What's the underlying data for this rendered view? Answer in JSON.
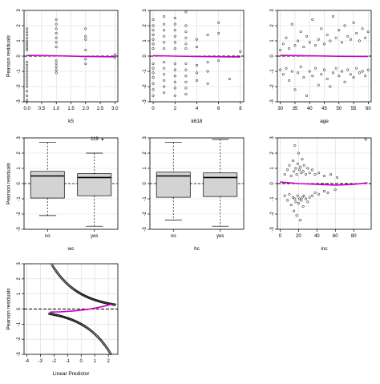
{
  "figure": {
    "ylabel_common": "Pearson residuals"
  },
  "colors": {
    "smooth": "#cc00cc",
    "box_fill": "#d3d3d3",
    "points": "#000000",
    "grid": "#d9d9d9",
    "refline": "#000000"
  },
  "chart_data": [
    {
      "id": "k5",
      "type": "scatter",
      "xlabel": "k5",
      "ylabel": "Pearson residuals",
      "xlim": [
        -0.1,
        3.1
      ],
      "ylim": [
        -3,
        3
      ],
      "xticks": [
        0.0,
        0.5,
        1.0,
        1.5,
        2.0,
        2.5,
        3.0
      ],
      "xticklabels": [
        "0.0",
        "0.5",
        "1.0",
        "1.5",
        "2.0",
        "2.5",
        "3.0"
      ],
      "yticks": [
        -3,
        -2,
        -1,
        0,
        1,
        2,
        3
      ],
      "grid": true,
      "refline_y": 0,
      "points": [
        [
          0,
          0.4
        ],
        [
          0,
          0.55
        ],
        [
          0,
          0.7
        ],
        [
          0,
          0.85
        ],
        [
          0,
          1.0
        ],
        [
          0,
          1.2
        ],
        [
          0,
          1.4
        ],
        [
          0,
          1.6
        ],
        [
          0,
          1.8
        ],
        [
          0,
          -0.4
        ],
        [
          0,
          -0.6
        ],
        [
          0,
          -0.8
        ],
        [
          0,
          -1.0
        ],
        [
          0,
          -1.2
        ],
        [
          0,
          -1.4
        ],
        [
          0,
          -1.6
        ],
        [
          0,
          -1.8
        ],
        [
          0,
          -2.0
        ],
        [
          0,
          -2.3
        ],
        [
          0,
          -2.6
        ],
        [
          0,
          -2.9
        ],
        [
          1,
          0.6
        ],
        [
          1,
          0.9
        ],
        [
          1,
          1.2
        ],
        [
          1,
          1.5
        ],
        [
          1,
          1.8
        ],
        [
          1,
          2.1
        ],
        [
          1,
          2.4
        ],
        [
          1,
          -0.3
        ],
        [
          1,
          -0.5
        ],
        [
          1,
          -0.7
        ],
        [
          1,
          -0.9
        ],
        [
          1,
          -1.1
        ],
        [
          2,
          0.4
        ],
        [
          2,
          1.1
        ],
        [
          2,
          1.3
        ],
        [
          2,
          1.8
        ],
        [
          2,
          -0.2
        ],
        [
          2,
          -0.5
        ],
        [
          3,
          0.1
        ],
        [
          3,
          -0.1
        ]
      ],
      "smooth": [
        [
          0,
          0.05
        ],
        [
          1,
          0.02
        ],
        [
          2,
          -0.02
        ],
        [
          3,
          -0.05
        ]
      ]
    },
    {
      "id": "k618",
      "type": "scatter",
      "xlabel": "k618",
      "ylabel": "",
      "xlim": [
        -0.3,
        8.3
      ],
      "ylim": [
        -3,
        3
      ],
      "xticks": [
        0,
        2,
        4,
        6,
        8
      ],
      "xticklabels": [
        "0",
        "2",
        "4",
        "6",
        "8"
      ],
      "yticks": [
        -3,
        -2,
        -1,
        0,
        1,
        2,
        3
      ],
      "grid": true,
      "refline_y": 0,
      "points": [
        [
          0,
          0.5
        ],
        [
          0,
          0.8
        ],
        [
          0,
          1.1
        ],
        [
          0,
          1.4
        ],
        [
          0,
          1.7
        ],
        [
          0,
          2.0
        ],
        [
          0,
          2.4
        ],
        [
          0,
          -0.5
        ],
        [
          0,
          -0.8
        ],
        [
          0,
          -1.1
        ],
        [
          0,
          -1.4
        ],
        [
          0,
          -1.8
        ],
        [
          0,
          -2.2
        ],
        [
          0,
          -2.6
        ],
        [
          1,
          0.5
        ],
        [
          1,
          0.9
        ],
        [
          1,
          1.3
        ],
        [
          1,
          1.7
        ],
        [
          1,
          2.1
        ],
        [
          1,
          2.6
        ],
        [
          1,
          -0.4
        ],
        [
          1,
          -0.8
        ],
        [
          1,
          -1.2
        ],
        [
          1,
          -1.6
        ],
        [
          1,
          -2.0
        ],
        [
          1,
          -2.4
        ],
        [
          2,
          0.5
        ],
        [
          2,
          0.9
        ],
        [
          2,
          1.3
        ],
        [
          2,
          1.7
        ],
        [
          2,
          2.1
        ],
        [
          2,
          2.5
        ],
        [
          2,
          -0.5
        ],
        [
          2,
          -0.9
        ],
        [
          2,
          -1.3
        ],
        [
          2,
          -1.7
        ],
        [
          2,
          -2.1
        ],
        [
          2,
          -2.6
        ],
        [
          3,
          0.5
        ],
        [
          3,
          0.8
        ],
        [
          3,
          1.2
        ],
        [
          3,
          1.6
        ],
        [
          3,
          2.0
        ],
        [
          3,
          2.9
        ],
        [
          3,
          -0.5
        ],
        [
          3,
          -0.9
        ],
        [
          3,
          -1.3
        ],
        [
          3,
          -1.7
        ],
        [
          3,
          -2.1
        ],
        [
          3,
          -2.5
        ],
        [
          4,
          0.6
        ],
        [
          4,
          1.1
        ],
        [
          4,
          -0.6
        ],
        [
          4,
          -1.1
        ],
        [
          4,
          -1.6
        ],
        [
          5,
          1.4
        ],
        [
          5,
          -0.4
        ],
        [
          5,
          -1.0
        ],
        [
          5,
          -1.8
        ],
        [
          6,
          2.2
        ],
        [
          6,
          1.5
        ],
        [
          6,
          -0.3
        ],
        [
          7,
          -1.5
        ],
        [
          8,
          0.3
        ]
      ],
      "smooth": [
        [
          0,
          0.03
        ],
        [
          2,
          0.0
        ],
        [
          4,
          -0.02
        ],
        [
          6,
          -0.04
        ],
        [
          8,
          -0.06
        ]
      ]
    },
    {
      "id": "age",
      "type": "scatter",
      "xlabel": "age",
      "ylabel": "",
      "xlim": [
        29,
        61
      ],
      "ylim": [
        -3,
        3
      ],
      "xticks": [
        30,
        35,
        40,
        45,
        50,
        55,
        60
      ],
      "xticklabels": [
        "30",
        "35",
        "40",
        "45",
        "50",
        "55",
        "60"
      ],
      "yticks": [
        -3,
        -2,
        -1,
        0,
        1,
        2,
        3
      ],
      "grid": true,
      "refline_y": 0,
      "points": [
        [
          30,
          0.4
        ],
        [
          31,
          0.8
        ],
        [
          32,
          1.2
        ],
        [
          33,
          0.5
        ],
        [
          34,
          2.1
        ],
        [
          35,
          0.7
        ],
        [
          36,
          1.0
        ],
        [
          37,
          1.6
        ],
        [
          38,
          0.6
        ],
        [
          39,
          1.3
        ],
        [
          40,
          0.9
        ],
        [
          41,
          2.4
        ],
        [
          42,
          0.7
        ],
        [
          43,
          1.1
        ],
        [
          44,
          1.8
        ],
        [
          45,
          0.8
        ],
        [
          46,
          1.4
        ],
        [
          47,
          1.0
        ],
        [
          48,
          2.6
        ],
        [
          49,
          1.2
        ],
        [
          50,
          1.7
        ],
        [
          51,
          0.9
        ],
        [
          52,
          2.0
        ],
        [
          53,
          1.3
        ],
        [
          54,
          1.1
        ],
        [
          55,
          2.2
        ],
        [
          56,
          1.5
        ],
        [
          57,
          1.0
        ],
        [
          58,
          1.8
        ],
        [
          59,
          1.2
        ],
        [
          60,
          1.6
        ],
        [
          30,
          -0.9
        ],
        [
          31,
          -1.2
        ],
        [
          32,
          -0.8
        ],
        [
          33,
          -1.6
        ],
        [
          34,
          -1.0
        ],
        [
          35,
          -2.2
        ],
        [
          36,
          -1.1
        ],
        [
          37,
          -0.7
        ],
        [
          38,
          -1.4
        ],
        [
          39,
          -2.6
        ],
        [
          40,
          -1.0
        ],
        [
          41,
          -1.3
        ],
        [
          42,
          -0.8
        ],
        [
          43,
          -1.9
        ],
        [
          44,
          -1.2
        ],
        [
          45,
          -0.9
        ],
        [
          46,
          -1.5
        ],
        [
          47,
          -2.0
        ],
        [
          48,
          -1.1
        ],
        [
          49,
          -0.8
        ],
        [
          50,
          -1.3
        ],
        [
          51,
          -1.0
        ],
        [
          52,
          -1.7
        ],
        [
          53,
          -0.9
        ],
        [
          54,
          -1.2
        ],
        [
          55,
          -1.4
        ],
        [
          56,
          -0.8
        ],
        [
          57,
          -1.1
        ],
        [
          58,
          -1.0
        ],
        [
          59,
          -1.3
        ],
        [
          60,
          -0.9
        ]
      ],
      "smooth": [
        [
          30,
          0.05
        ],
        [
          40,
          0.02
        ],
        [
          50,
          -0.01
        ],
        [
          60,
          -0.02
        ]
      ]
    },
    {
      "id": "wc",
      "type": "box",
      "xlabel": "wc",
      "ylabel": "Pearson residuals",
      "categories": [
        "no",
        "yes"
      ],
      "ylim": [
        -3,
        3
      ],
      "yticks": [
        -3,
        -2,
        -1,
        0,
        1,
        2,
        3
      ],
      "grid": true,
      "refline_y": 0,
      "boxes": [
        {
          "category": "no",
          "whisker_low": -2.1,
          "q1": -0.95,
          "median": 0.5,
          "q3": 0.8,
          "whisker_high": 2.7,
          "outliers": []
        },
        {
          "category": "yes",
          "whisker_low": -2.8,
          "q1": -0.8,
          "median": 0.4,
          "q3": 0.65,
          "whisker_high": 2.0,
          "outliers": [
            2.9
          ]
        }
      ],
      "annotations": [
        {
          "text": "119",
          "category": "yes",
          "y": 2.9
        }
      ]
    },
    {
      "id": "hc",
      "type": "box",
      "xlabel": "hc",
      "ylabel": "",
      "categories": [
        "no",
        "yes"
      ],
      "ylim": [
        -3,
        3
      ],
      "yticks": [
        -3,
        -2,
        -1,
        0,
        1,
        2,
        3
      ],
      "grid": true,
      "refline_y": 0,
      "boxes": [
        {
          "category": "no",
          "whisker_low": -2.4,
          "q1": -0.9,
          "median": 0.5,
          "q3": 0.75,
          "whisker_high": 2.7,
          "outliers": []
        },
        {
          "category": "yes",
          "whisker_low": -2.8,
          "q1": -0.85,
          "median": 0.4,
          "q3": 0.7,
          "whisker_high": 2.9,
          "outliers": []
        }
      ],
      "annotations": []
    },
    {
      "id": "inc",
      "type": "scatter",
      "xlabel": "inc",
      "ylabel": "",
      "xlim": [
        -3,
        99
      ],
      "ylim": [
        -3,
        3
      ],
      "xticks": [
        0,
        20,
        40,
        60,
        80
      ],
      "xticklabels": [
        "0",
        "20",
        "40",
        "60",
        "80"
      ],
      "yticks": [
        -3,
        -2,
        -1,
        0,
        1,
        2,
        3
      ],
      "grid": true,
      "refline_y": 0,
      "points": [
        [
          5,
          0.6
        ],
        [
          8,
          0.9
        ],
        [
          10,
          1.2
        ],
        [
          12,
          0.5
        ],
        [
          14,
          1.5
        ],
        [
          15,
          0.8
        ],
        [
          16,
          2.5
        ],
        [
          17,
          1.0
        ],
        [
          18,
          0.6
        ],
        [
          19,
          1.3
        ],
        [
          20,
          2.0
        ],
        [
          21,
          0.9
        ],
        [
          22,
          1.1
        ],
        [
          23,
          0.7
        ],
        [
          24,
          1.6
        ],
        [
          25,
          0.8
        ],
        [
          26,
          1.2
        ],
        [
          28,
          0.6
        ],
        [
          30,
          1.0
        ],
        [
          32,
          0.7
        ],
        [
          35,
          0.9
        ],
        [
          38,
          0.6
        ],
        [
          42,
          0.7
        ],
        [
          48,
          0.5
        ],
        [
          55,
          0.6
        ],
        [
          62,
          0.4
        ],
        [
          93,
          2.9
        ],
        [
          5,
          -0.8
        ],
        [
          8,
          -1.1
        ],
        [
          10,
          -0.7
        ],
        [
          12,
          -1.4
        ],
        [
          14,
          -0.9
        ],
        [
          15,
          -1.8
        ],
        [
          16,
          -1.0
        ],
        [
          17,
          -1.2
        ],
        [
          18,
          -2.1
        ],
        [
          19,
          -0.8
        ],
        [
          20,
          -1.3
        ],
        [
          21,
          -1.0
        ],
        [
          22,
          -2.4
        ],
        [
          23,
          -1.1
        ],
        [
          24,
          -0.9
        ],
        [
          25,
          -1.5
        ],
        [
          26,
          -0.8
        ],
        [
          28,
          -1.0
        ],
        [
          30,
          -1.2
        ],
        [
          32,
          -0.9
        ],
        [
          35,
          -0.8
        ],
        [
          38,
          -0.6
        ],
        [
          42,
          -0.7
        ],
        [
          48,
          -0.5
        ],
        [
          52,
          -0.6
        ],
        [
          60,
          -0.4
        ]
      ],
      "smooth": [
        [
          0,
          0.1
        ],
        [
          20,
          0.0
        ],
        [
          40,
          -0.05
        ],
        [
          60,
          -0.1
        ],
        [
          80,
          -0.05
        ],
        [
          95,
          0.05
        ]
      ]
    },
    {
      "id": "lp",
      "type": "scatter",
      "xlabel": "Linear Predictor",
      "ylabel": "Pearson residuals",
      "xlim": [
        -4.2,
        2.7
      ],
      "ylim": [
        -3,
        3
      ],
      "xticks": [
        -4,
        -3,
        -2,
        -1,
        0,
        1,
        2
      ],
      "xticklabels": [
        "-4",
        "-3",
        "-2",
        "-1",
        "0",
        "1",
        "2"
      ],
      "yticks": [
        -3,
        -2,
        -1,
        0,
        1,
        2,
        3
      ],
      "grid": true,
      "refline_y": 0,
      "dense_curves": {
        "upper": {
          "x_from": -2.15,
          "x_to": 2.5
        },
        "lower": {
          "x_from": -2.35,
          "x_to": 2.5
        }
      },
      "smooth": [
        [
          -2.3,
          -0.2
        ],
        [
          -1.5,
          -0.18
        ],
        [
          -0.5,
          -0.12
        ],
        [
          0.5,
          -0.02
        ],
        [
          1.5,
          0.15
        ],
        [
          2.4,
          0.35
        ]
      ]
    }
  ]
}
